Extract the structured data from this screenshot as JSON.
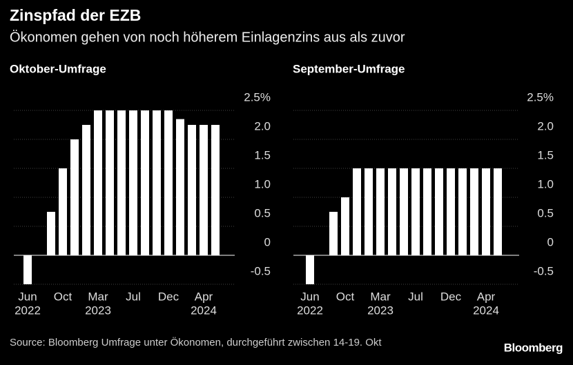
{
  "title": "Zinspfad der EZB",
  "subtitle": "Ökonomen gehen von noch höherem Einlagenzins aus als zuvor",
  "source": "Source: Bloomberg Umfrage unter Ökonomen, durchgeführt zwischen 14-19. Okt",
  "brand": "Bloomberg",
  "chart_data": [
    {
      "type": "bar",
      "title": "Oktober-Umfrage",
      "color": "#ffffff",
      "categories": [
        "Jun",
        null,
        null,
        "Oct",
        null,
        null,
        "Mar",
        null,
        null,
        "Jul",
        null,
        null,
        "Dec",
        null,
        null,
        "Apr",
        null
      ],
      "category_years": [
        "2022",
        null,
        null,
        null,
        null,
        null,
        "2023",
        null,
        null,
        null,
        null,
        null,
        null,
        null,
        null,
        "2024",
        null
      ],
      "values": [
        -0.5,
        0,
        0.75,
        1.5,
        2.0,
        2.25,
        2.5,
        2.5,
        2.5,
        2.5,
        2.5,
        2.5,
        2.5,
        2.35,
        2.25,
        2.25,
        2.25
      ],
      "ylim": [
        -0.5,
        2.5
      ],
      "yticks": [
        {
          "value": 2.5,
          "label": "2.5%"
        },
        {
          "value": 2.0,
          "label": "2.0"
        },
        1.5,
        {
          "value": 1.0,
          "label": "1.0"
        },
        0.5,
        0,
        -0.5
      ]
    },
    {
      "type": "bar",
      "title": "September-Umfrage",
      "color": "#ffffff",
      "categories": [
        "Jun",
        null,
        null,
        "Oct",
        null,
        null,
        "Mar",
        null,
        null,
        "Jul",
        null,
        null,
        "Dec",
        null,
        null,
        "Apr",
        null
      ],
      "category_years": [
        "2022",
        null,
        null,
        null,
        null,
        null,
        "2023",
        null,
        null,
        null,
        null,
        null,
        null,
        null,
        null,
        "2024",
        null
      ],
      "values": [
        -0.5,
        0,
        0.75,
        1.0,
        1.5,
        1.5,
        1.5,
        1.5,
        1.5,
        1.5,
        1.5,
        1.5,
        1.5,
        1.5,
        1.5,
        1.5,
        1.5
      ],
      "ylim": [
        -0.5,
        2.5
      ],
      "yticks": [
        {
          "value": 2.5,
          "label": "2.5%"
        },
        {
          "value": 2.0,
          "label": "2.0"
        },
        1.5,
        {
          "value": 1.0,
          "label": "1.0"
        },
        0.5,
        0,
        -0.5
      ]
    }
  ]
}
